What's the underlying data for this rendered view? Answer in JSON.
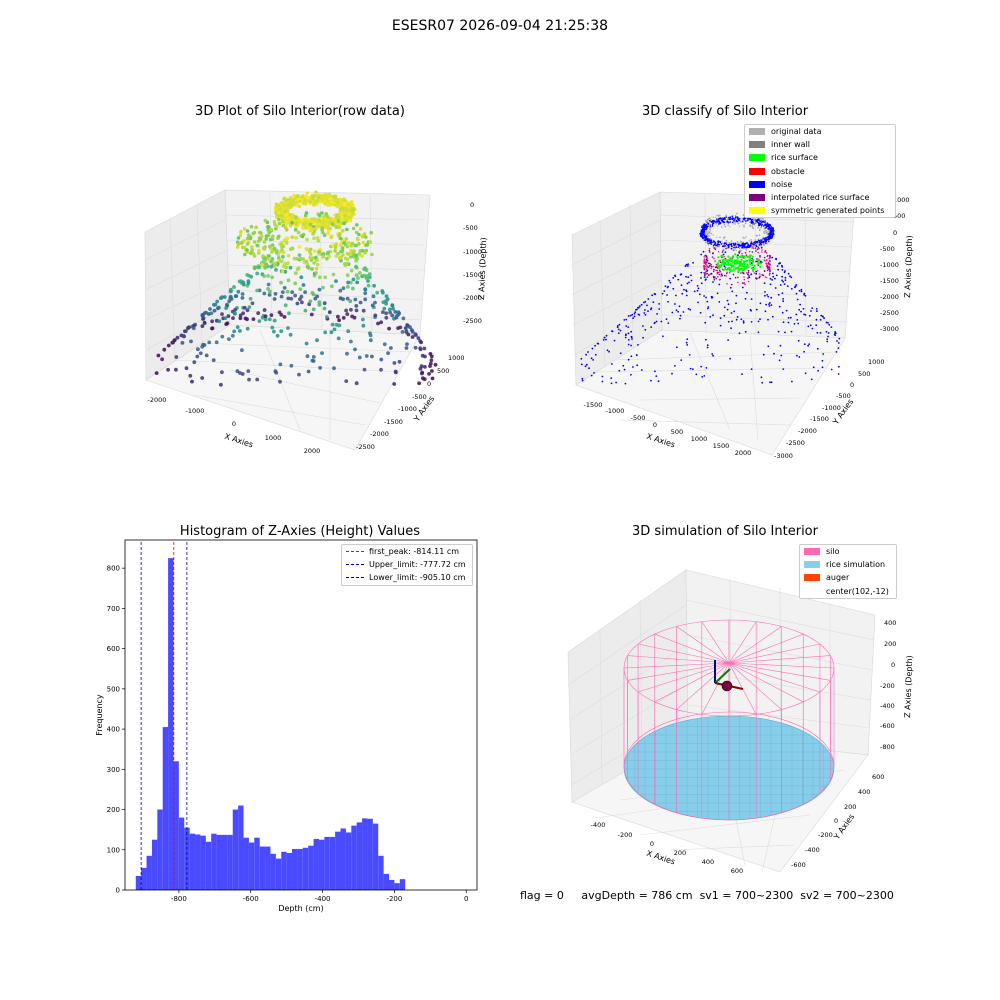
{
  "page": {
    "suptitle": "ESESR07 2026-09-04 21:25:38"
  },
  "plots": {
    "raw": {
      "title": "3D Plot of Silo Interior(row data)",
      "xlabel": "X Axies",
      "ylabel": "Y Axies",
      "zlabel": "Z Axies (Depth)"
    },
    "classify": {
      "title": "3D classify of Silo Interior",
      "xlabel": "X Axies",
      "ylabel": "Y Axies",
      "zlabel": "Z Axies (Depth)",
      "legend": [
        {
          "label": "original data",
          "color": "#b0b0b0"
        },
        {
          "label": "inner wall",
          "color": "#808080"
        },
        {
          "label": "rice surface",
          "color": "#00ff00"
        },
        {
          "label": "obstacle",
          "color": "#ff0000"
        },
        {
          "label": "noise",
          "color": "#0000ff"
        },
        {
          "label": "interpolated rice surface",
          "color": "#800080"
        },
        {
          "label": "symmetric generated points",
          "color": "#ffff00"
        }
      ]
    },
    "simulation": {
      "title": "3D simulation of Silo Interior",
      "xlabel": "X Axies",
      "ylabel": "Y Axies",
      "zlabel": "Z Axies (Depth)",
      "legend": [
        {
          "label": "silo",
          "color": "#ff69b4"
        },
        {
          "label": "rice simulation",
          "color": "#87ceeb"
        },
        {
          "label": "auger",
          "color": "#ff4500"
        },
        {
          "label": "center(102,-12)",
          "color": ""
        }
      ]
    }
  },
  "chart_data": [
    {
      "type": "scatter",
      "title": "3D Plot of Silo Interior(row data)",
      "xlabel": "X Axies",
      "ylabel": "Y Axies",
      "zlabel": "Z Axies (Depth)",
      "x_ticks": [
        -2000,
        -1000,
        0,
        1000,
        2000
      ],
      "y_ticks": [
        1000,
        500,
        0,
        -500,
        -1000,
        -1500,
        -2000,
        -2500
      ],
      "z_ticks": [
        0,
        -500,
        -1000,
        -1500,
        -2000,
        -2500
      ],
      "xlim": [
        -2300,
        2500
      ],
      "ylim": [
        -2700,
        1300
      ],
      "zlim": [
        -2900,
        200
      ],
      "colormap": "viridis by depth"
    },
    {
      "type": "scatter",
      "title": "3D classify of Silo Interior",
      "xlabel": "X Axies",
      "ylabel": "Y Axies",
      "zlabel": "Z Axies (Depth)",
      "x_ticks": [
        -1500,
        -1000,
        -500,
        0,
        500,
        1000,
        1500,
        2000
      ],
      "y_ticks": [
        1000,
        500,
        0,
        -500,
        -1000,
        -1500,
        -2000,
        -2500,
        -3000
      ],
      "z_ticks": [
        1000,
        500,
        0,
        -500,
        -1000,
        -1500,
        -2000,
        -2500,
        -3000
      ],
      "xlim": [
        -1800,
        2300
      ],
      "ylim": [
        -3100,
        1300
      ],
      "zlim": [
        -3300,
        1200
      ],
      "series": [
        "original data",
        "inner wall",
        "rice surface",
        "obstacle",
        "noise",
        "interpolated rice surface",
        "symmetric generated points"
      ]
    },
    {
      "type": "bar",
      "title": "Histogram of Z-Axies (Height) Values",
      "xlabel": "Depth (cm)",
      "ylabel": "Frequency",
      "xlim": [
        -950,
        30
      ],
      "ylim": [
        0,
        870
      ],
      "x_ticks": [
        -800,
        -600,
        -400,
        -200,
        0
      ],
      "y_ticks": [
        0,
        100,
        200,
        300,
        400,
        500,
        600,
        700,
        800
      ],
      "bin_width": 15,
      "bin_start": -920,
      "values": [
        35,
        55,
        85,
        125,
        200,
        405,
        825,
        320,
        180,
        155,
        140,
        138,
        135,
        120,
        140,
        137,
        137,
        137,
        200,
        210,
        130,
        118,
        130,
        108,
        108,
        90,
        78,
        95,
        92,
        102,
        102,
        105,
        110,
        127,
        125,
        132,
        132,
        145,
        153,
        143,
        160,
        168,
        178,
        177,
        165,
        85,
        40,
        25,
        17,
        27
      ],
      "lines": [
        {
          "label": "first_peak: -814.11 cm",
          "x": -814.11,
          "color": "#ff0000"
        },
        {
          "label": "Upper_limit: -777.72 cm",
          "x": -777.72,
          "color": "#0000aa"
        },
        {
          "label": "Lower_limit: -905.10 cm",
          "x": -905.1,
          "color": "#0000aa"
        }
      ]
    },
    {
      "type": "scatter",
      "title": "3D simulation of Silo Interior",
      "xlabel": "X Axies",
      "ylabel": "Y Axies",
      "zlabel": "Z Axies (Depth)",
      "x_ticks": [
        -400,
        -200,
        0,
        200,
        400,
        600
      ],
      "y_ticks": [
        600,
        400,
        200,
        0,
        -200,
        -400,
        -600
      ],
      "z_ticks": [
        400,
        200,
        0,
        -200,
        -400,
        -600,
        -800
      ],
      "center": [
        102,
        -12
      ]
    }
  ],
  "footer": {
    "flag": "flag = 0",
    "avg": "avgDepth = 786 cm",
    "sv1": "sv1 = 700~2300",
    "sv2": "sv2 = 700~2300"
  }
}
